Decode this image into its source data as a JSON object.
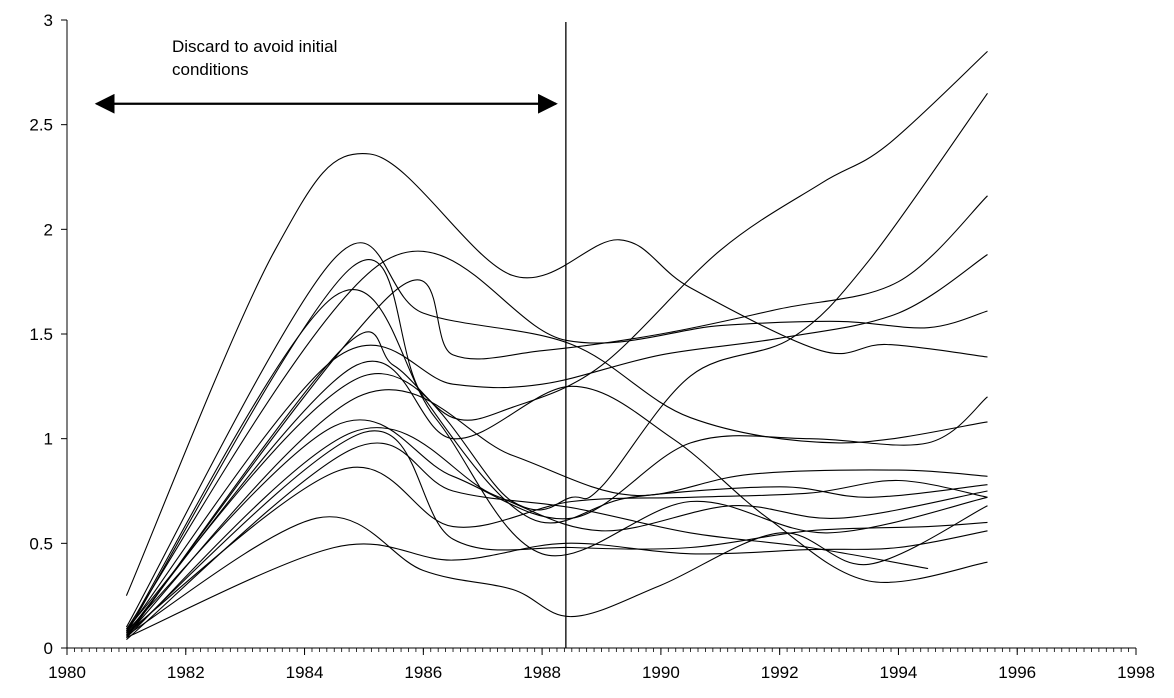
{
  "chart_data": {
    "type": "line",
    "title": "",
    "xlabel": "",
    "ylabel": "",
    "xlim": [
      1980,
      1998
    ],
    "ylim": [
      0,
      3
    ],
    "x_ticks": [
      1980,
      1982,
      1984,
      1986,
      1988,
      1990,
      1992,
      1994,
      1996,
      1998
    ],
    "x_tick_labels": [
      "1980",
      "1982",
      "1984",
      "1986",
      "1988",
      "1990",
      "1992",
      "1994",
      "1996",
      "1998"
    ],
    "y_ticks": [
      0,
      0.5,
      1,
      1.5,
      2,
      2.5,
      3
    ],
    "y_tick_labels": [
      "0",
      "0.5",
      "1",
      "1.5",
      "2",
      "2.5",
      "3"
    ],
    "x_minor_step": 0.125,
    "grid": false,
    "legend": "none",
    "line_color": "#000000",
    "vertical_marker_x": 1988.4,
    "annotation": {
      "lines": [
        "Discard to avoid initial",
        "conditions"
      ],
      "arrow_from_x": 1980.5,
      "arrow_to_x": 1988.4,
      "arrow_y": 2.6
    },
    "series": [
      {
        "x": [
          1981,
          1983.5,
          1985.1,
          1987.5,
          1989.3,
          1990.5,
          1992.7,
          1993.8,
          1995.5
        ],
        "y": [
          0.25,
          1.9,
          2.36,
          1.78,
          1.95,
          1.72,
          1.42,
          1.45,
          1.39
        ]
      },
      {
        "x": [
          1981,
          1984.5,
          1986,
          1988.5,
          1990.5,
          1993,
          1995.5
        ],
        "y": [
          0.1,
          1.86,
          1.6,
          1.45,
          1.1,
          0.98,
          1.08
        ]
      },
      {
        "x": [
          1981,
          1985.3,
          1988.4,
          1991,
          1993,
          1994.5,
          1995.5
        ],
        "y": [
          0.09,
          1.84,
          1.47,
          1.54,
          1.56,
          1.53,
          1.61
        ]
      },
      {
        "x": [
          1981,
          1984.8,
          1986,
          1987.8,
          1989.5,
          1992,
          1993.5,
          1995.5
        ],
        "y": [
          0.07,
          1.82,
          1.2,
          0.62,
          0.72,
          0.77,
          0.72,
          0.78
        ]
      },
      {
        "x": [
          1981,
          1984.5,
          1986.2,
          1988,
          1990.5,
          1992.8,
          1995.5
        ],
        "y": [
          0.08,
          1.68,
          1.1,
          0.45,
          0.7,
          0.55,
          0.72
        ]
      },
      {
        "x": [
          1981,
          1985.5,
          1986.5,
          1988,
          1990,
          1992,
          1994,
          1995.5
        ],
        "y": [
          0.06,
          1.7,
          1.4,
          1.42,
          1.5,
          1.62,
          1.75,
          2.16
        ]
      },
      {
        "x": [
          1981,
          1984.6,
          1985.5,
          1986.5,
          1987.5,
          1989,
          1991,
          1992.7,
          1993.8,
          1995.5
        ],
        "y": [
          0.05,
          1.42,
          1.35,
          1.1,
          1.15,
          1.35,
          1.9,
          2.22,
          2.4,
          2.85
        ]
      },
      {
        "x": [
          1981,
          1984.5,
          1986.5,
          1988,
          1990,
          1992,
          1994,
          1995.5
        ],
        "y": [
          0.08,
          1.38,
          1.26,
          1.26,
          1.4,
          1.48,
          1.6,
          1.88
        ]
      },
      {
        "x": [
          1981,
          1984.8,
          1986.5,
          1988.5,
          1990.2,
          1991.8,
          1993.5,
          1995.5
        ],
        "y": [
          0.07,
          1.34,
          1.0,
          1.25,
          1.0,
          0.62,
          0.32,
          0.41
        ]
      },
      {
        "x": [
          1981,
          1985,
          1987.5,
          1988.5,
          1989,
          1990.5,
          1992.2,
          1993.5,
          1995.5
        ],
        "y": [
          0.09,
          1.3,
          0.7,
          0.72,
          0.77,
          1.3,
          1.48,
          1.85,
          2.65
        ]
      },
      {
        "x": [
          1981,
          1984.9,
          1987.5,
          1989.5,
          1991.5,
          1994,
          1995.5
        ],
        "y": [
          0.06,
          1.2,
          0.92,
          0.73,
          0.83,
          0.85,
          0.82
        ]
      },
      {
        "x": [
          1981,
          1984.5,
          1986.5,
          1988.5,
          1990.5,
          1992.5,
          1994.5,
          1995.5
        ],
        "y": [
          0.08,
          1.06,
          0.82,
          0.62,
          0.98,
          1.0,
          0.98,
          1.2
        ]
      },
      {
        "x": [
          1981,
          1984.8,
          1987.2,
          1989,
          1991.2,
          1993,
          1995.5
        ],
        "y": [
          0.05,
          1.03,
          0.73,
          0.56,
          0.68,
          0.62,
          0.75
        ]
      },
      {
        "x": [
          1981,
          1984.8,
          1986.5,
          1988.5,
          1990.5,
          1992.5,
          1994.5
        ],
        "y": [
          0.04,
          0.95,
          0.75,
          0.67,
          0.55,
          0.48,
          0.38
        ]
      },
      {
        "x": [
          1981,
          1984.6,
          1986.5,
          1988.5,
          1990.5,
          1992.5,
          1994,
          1995.5
        ],
        "y": [
          0.07,
          0.85,
          0.58,
          0.7,
          0.72,
          0.74,
          0.8,
          0.72
        ]
      },
      {
        "x": [
          1981,
          1984.2,
          1986,
          1987.5,
          1988.5,
          1990,
          1992,
          1993.5,
          1995.5
        ],
        "y": [
          0.06,
          0.62,
          0.37,
          0.28,
          0.15,
          0.3,
          0.55,
          0.4,
          0.68
        ]
      },
      {
        "x": [
          1981,
          1984.5,
          1986.5,
          1988.4,
          1990.5,
          1992.5,
          1994,
          1995.5
        ],
        "y": [
          0.05,
          0.48,
          0.42,
          0.5,
          0.45,
          0.47,
          0.48,
          0.56
        ]
      },
      {
        "x": [
          1981,
          1985,
          1986.5,
          1988.5,
          1990.5,
          1992.5,
          1994.5,
          1995.5
        ],
        "y": [
          0.06,
          1.03,
          0.52,
          0.48,
          0.48,
          0.56,
          0.58,
          0.6
        ]
      }
    ]
  }
}
